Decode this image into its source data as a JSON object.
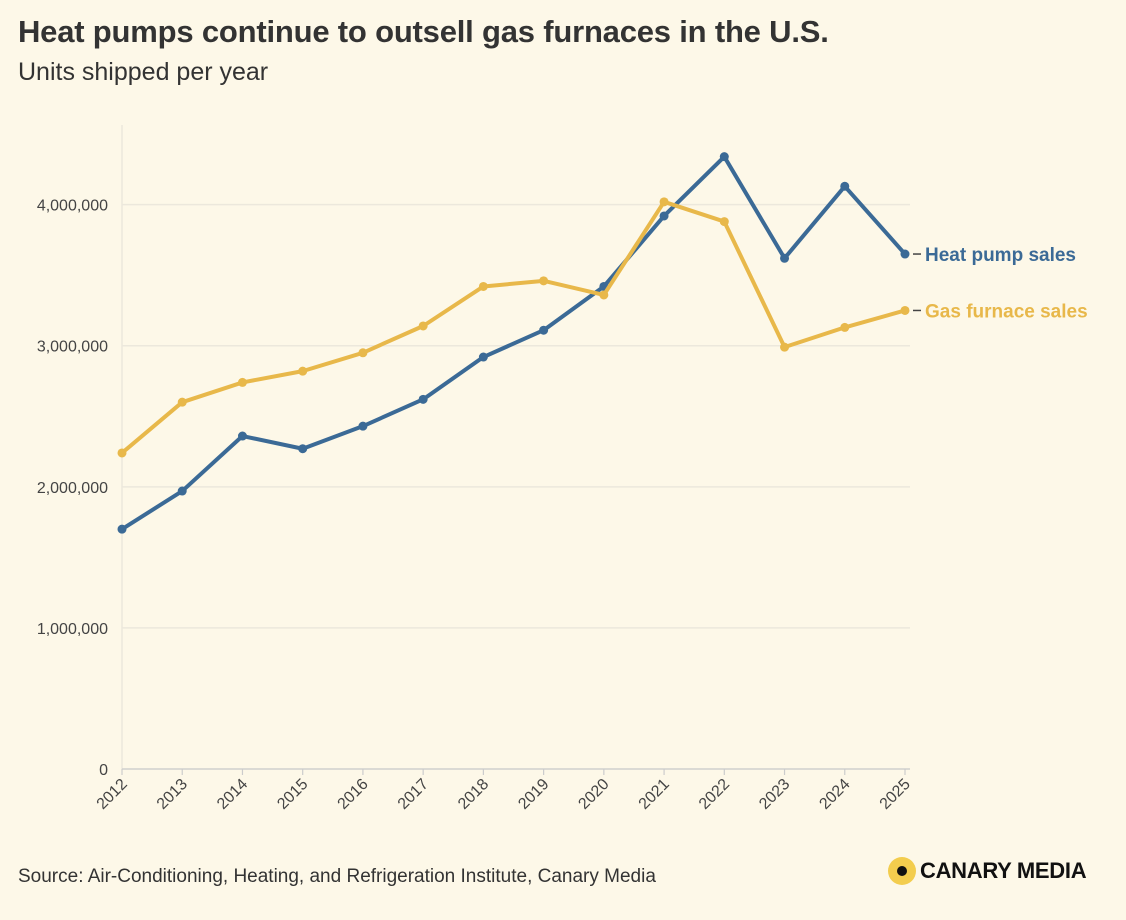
{
  "header": {
    "title": "Heat pumps continue to outsell gas furnaces in the U.S.",
    "subtitle": "Units shipped per year"
  },
  "footer": {
    "source": "Source: Air-Conditioning, Heating, and Refrigeration Institute, Canary Media",
    "brand": "CANARY MEDIA"
  },
  "colors": {
    "heat_pump": "#3b6a96",
    "gas_furnace": "#e8b84a",
    "grid": "#ece8dc",
    "axis": "#cccccc"
  },
  "chart_data": {
    "type": "line",
    "title": "Heat pumps continue to outsell gas furnaces in the U.S.",
    "subtitle": "Units shipped per year",
    "xlabel": "",
    "ylabel": "",
    "x": [
      "2012",
      "2013",
      "2014",
      "2015",
      "2016",
      "2017",
      "2018",
      "2019",
      "2020",
      "2021",
      "2022",
      "2023",
      "2024",
      "2025"
    ],
    "ylim": [
      0,
      4600000
    ],
    "yticks": [
      0,
      1000000,
      2000000,
      3000000,
      4000000
    ],
    "ytick_labels": [
      "0",
      "1,000,000",
      "2,000,000",
      "3,000,000",
      "4,000,000"
    ],
    "grid": true,
    "series": [
      {
        "name": "Heat pump sales",
        "color": "#3b6a96",
        "values": [
          1700000,
          1970000,
          2360000,
          2270000,
          2430000,
          2620000,
          2920000,
          3110000,
          3420000,
          3920000,
          4340000,
          3620000,
          4130000,
          3650000
        ]
      },
      {
        "name": "Gas furnace sales",
        "color": "#e8b84a",
        "values": [
          2240000,
          2600000,
          2740000,
          2820000,
          2950000,
          3140000,
          3420000,
          3460000,
          3360000,
          4020000,
          3880000,
          2990000,
          3130000,
          3250000
        ]
      }
    ]
  }
}
